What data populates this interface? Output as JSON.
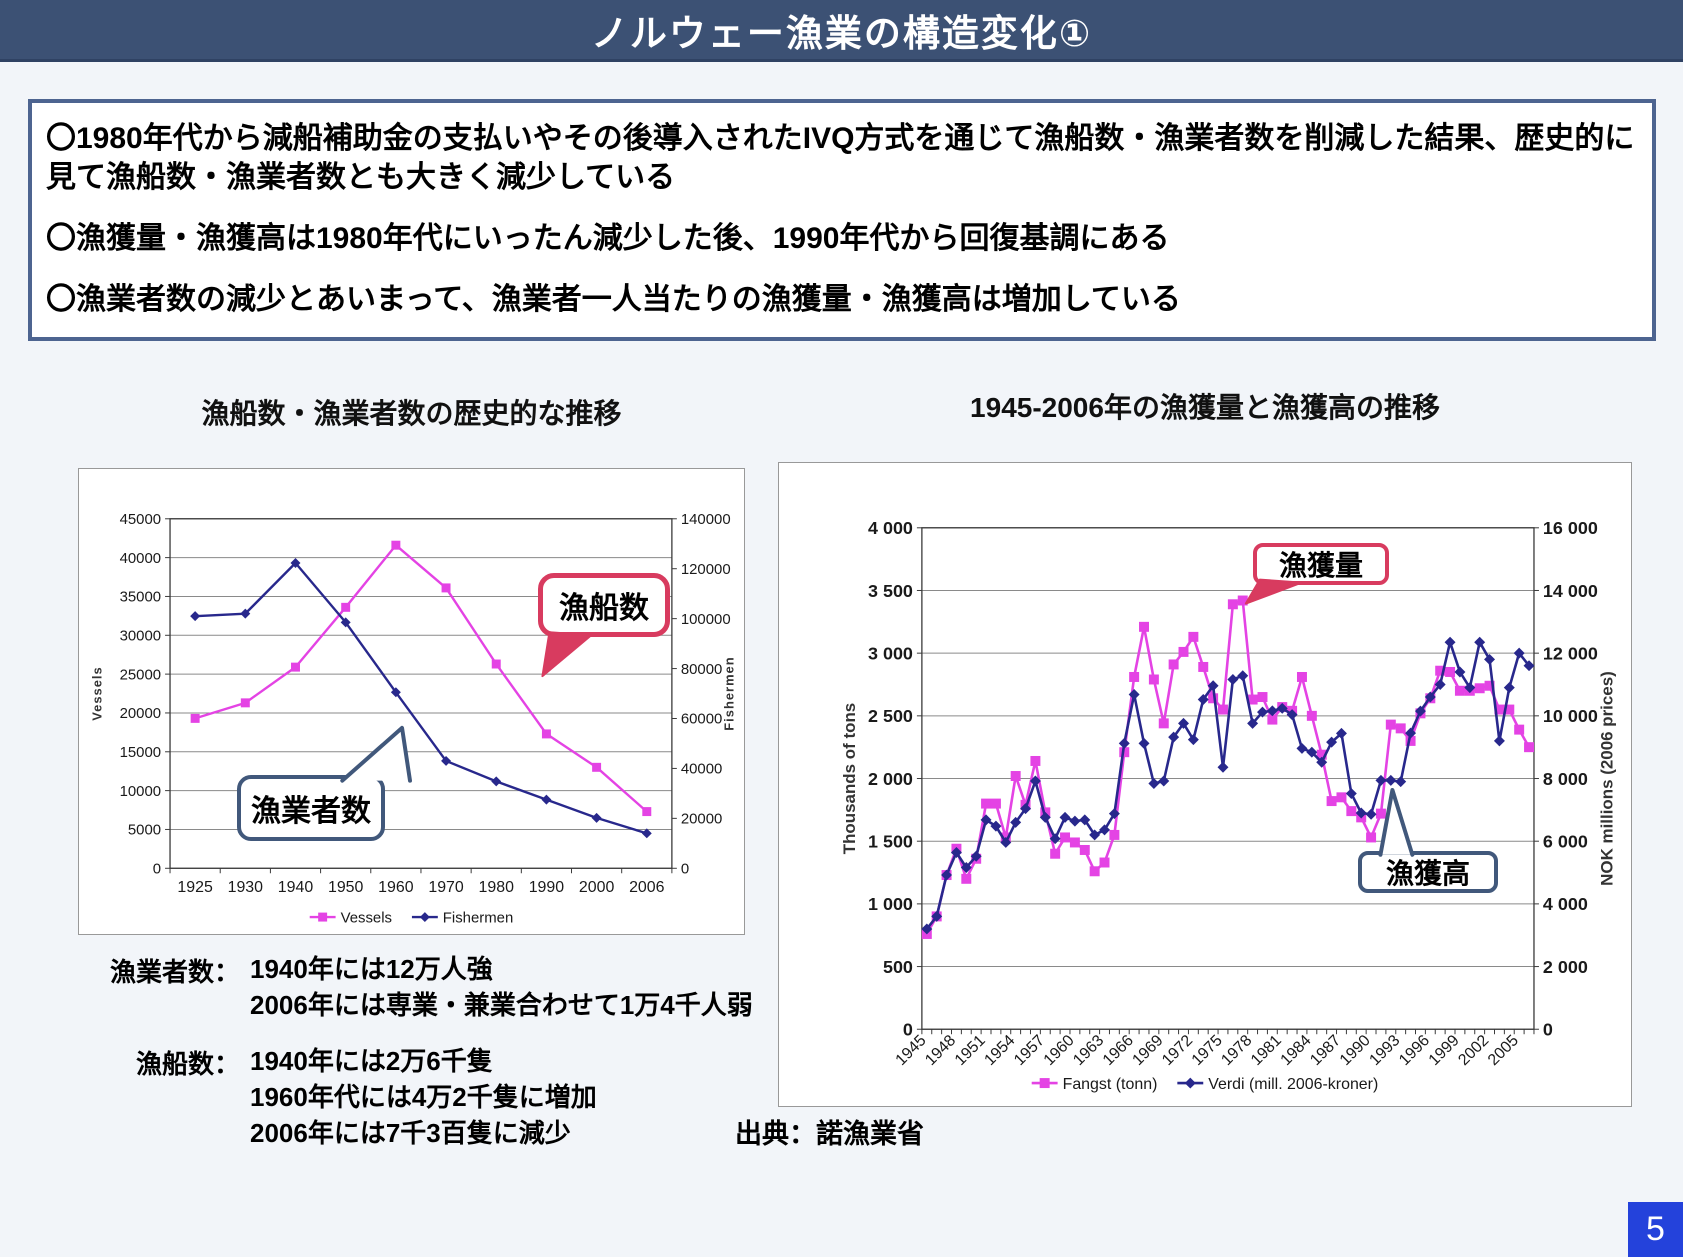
{
  "slide": {
    "title": "ノルウェー漁業の構造変化①",
    "source": "出典：諾漁業省",
    "page_number": "5"
  },
  "colors": {
    "title_bar": "#3C5174",
    "box_border": "#4D6490",
    "background": "#F2F5F9",
    "magenta": "#E443E4",
    "navy": "#28288C",
    "callout_red": "#D83B5F",
    "callout_navy": "#41587B",
    "page_badge": "#2442DB"
  },
  "summary_box": {
    "bullets": [
      "〇1980年代から減船補助金の支払いやその後導入されたIVQ方式を通じて漁船数・漁業者数を削減した結果、歴史的に見て漁船数・漁業者数とも大きく減少している",
      "〇漁獲量・漁獲高は1980年代にいったん減少した後、1990年代から回復基調にある",
      "〇漁業者数の減少とあいまって、漁業者一人当たりの漁獲量・漁獲高は増加している"
    ]
  },
  "left_chart": {
    "title": "漁船数・漁業者数の歴史的な推移",
    "callouts": {
      "vessels": "漁船数",
      "fishermen": "漁業者数"
    }
  },
  "right_chart": {
    "title": "1945-2006年の漁獲量と漁獲高の推移",
    "callouts": {
      "catch": "漁獲量",
      "value": "漁獲高"
    }
  },
  "notes": {
    "rows": [
      {
        "label": "漁業者数：",
        "lines": [
          "1940年には12万人強",
          "2006年には専業・兼業合わせて1万4千人弱"
        ]
      },
      {
        "label": "漁船数：",
        "lines": [
          "1940年には2万6千隻",
          "1960年代には4万2千隻に増加",
          "2006年には7千3百隻に減少"
        ]
      }
    ]
  },
  "chart_data": [
    {
      "type": "line",
      "title": "漁船数・漁業者数の歴史的な推移",
      "categories": [
        "1925",
        "1930",
        "1940",
        "1950",
        "1960",
        "1970",
        "1980",
        "1990",
        "2000",
        "2006"
      ],
      "left_axis": {
        "label": "Vessels",
        "min": 0,
        "max": 45000,
        "step": 5000,
        "thousands_space": false
      },
      "right_axis": {
        "label": "Fishermen",
        "min": 0,
        "max": 140000,
        "step": 20000,
        "thousands_space": false
      },
      "grid": true,
      "legend_position": "bottom",
      "series": [
        {
          "name": "Vessels",
          "axis": "left",
          "color": "#E443E4",
          "marker": "square",
          "values": [
            19300,
            21300,
            25900,
            33600,
            41600,
            36100,
            26300,
            17300,
            13000,
            7300
          ]
        },
        {
          "name": "Fishermen",
          "axis": "right",
          "color": "#28288C",
          "marker": "diamond",
          "values": [
            101000,
            102000,
            122300,
            98500,
            70500,
            43000,
            34800,
            27500,
            20200,
            14000
          ]
        }
      ]
    },
    {
      "type": "line",
      "title": "1945-2006年の漁獲量と漁獲高の推移",
      "categories": [
        "1945",
        "1946",
        "1947",
        "1948",
        "1949",
        "1950",
        "1951",
        "1952",
        "1953",
        "1954",
        "1955",
        "1956",
        "1957",
        "1958",
        "1959",
        "1960",
        "1961",
        "1962",
        "1963",
        "1964",
        "1965",
        "1966",
        "1967",
        "1968",
        "1969",
        "1970",
        "1971",
        "1972",
        "1973",
        "1974",
        "1975",
        "1976",
        "1977",
        "1978",
        "1979",
        "1980",
        "1981",
        "1982",
        "1983",
        "1984",
        "1985",
        "1986",
        "1987",
        "1988",
        "1989",
        "1990",
        "1991",
        "1992",
        "1993",
        "1994",
        "1995",
        "1996",
        "1997",
        "1998",
        "1999",
        "2000",
        "2001",
        "2002",
        "2003",
        "2004",
        "2005",
        "2006"
      ],
      "x_label_every": 3,
      "left_axis": {
        "label": "Thousands of tons",
        "min": 0,
        "max": 4000,
        "step": 500,
        "thousands_space": true
      },
      "right_axis": {
        "label": "NOK millions (2006 prices)",
        "min": 0,
        "max": 16000,
        "step": 2000,
        "thousands_space": true
      },
      "grid": true,
      "legend_position": "bottom",
      "series": [
        {
          "name": "Fangst (tonn)",
          "axis": "left",
          "color": "#E443E4",
          "marker": "square",
          "values": [
            760,
            900,
            1230,
            1440,
            1200,
            1360,
            1800,
            1800,
            1530,
            2020,
            1790,
            2140,
            1730,
            1400,
            1530,
            1490,
            1430,
            1260,
            1330,
            1550,
            2210,
            2810,
            3210,
            2790,
            2440,
            2910,
            3010,
            3130,
            2890,
            2640,
            2550,
            3390,
            3420,
            2630,
            2650,
            2470,
            2570,
            2540,
            2810,
            2500,
            2190,
            1820,
            1850,
            1740,
            1690,
            1530,
            1720,
            2430,
            2400,
            2300,
            2520,
            2640,
            2860,
            2850,
            2700,
            2700,
            2720,
            2740,
            2550,
            2550,
            2390,
            2250
          ]
        },
        {
          "name": "Verdi (mill. 2006-kroner)",
          "axis": "right",
          "color": "#28288C",
          "marker": "diamond",
          "values": [
            3200,
            3600,
            4920,
            5640,
            5160,
            5520,
            6680,
            6480,
            5960,
            6600,
            7040,
            7920,
            6760,
            6080,
            6760,
            6640,
            6680,
            6200,
            6360,
            6880,
            9120,
            10680,
            9120,
            7840,
            7920,
            9320,
            9760,
            9240,
            10520,
            10960,
            8360,
            11160,
            11280,
            9760,
            10120,
            10160,
            10240,
            10040,
            8960,
            8840,
            8520,
            9160,
            9440,
            7520,
            6900,
            6860,
            7940,
            7940,
            7900,
            9450,
            10150,
            10600,
            11000,
            12350,
            11400,
            10900,
            12350,
            11800,
            9200,
            10900,
            12000,
            11600
          ]
        }
      ]
    }
  ]
}
